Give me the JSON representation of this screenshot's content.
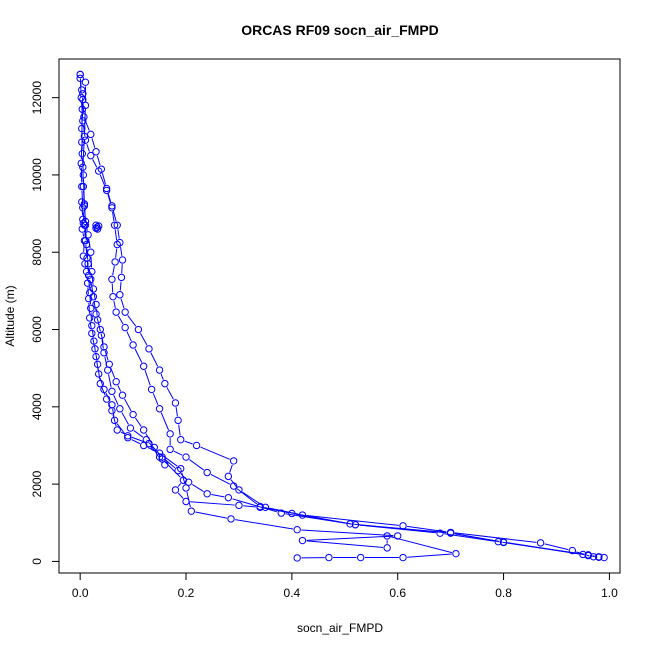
{
  "chart_data": {
    "type": "line",
    "title": "ORCAS RF09 socn_air_FMPD",
    "xlabel": "socn_air_FMPD",
    "ylabel": "Altitude (m)",
    "xlim": [
      -0.04,
      1.02
    ],
    "ylim": [
      -300,
      13000
    ],
    "xticks": [
      0.0,
      0.2,
      0.4,
      0.6,
      0.8,
      1.0
    ],
    "xtick_labels": [
      "0.0",
      "0.2",
      "0.4",
      "0.6",
      "0.8",
      "1.0"
    ],
    "yticks": [
      0,
      2000,
      4000,
      6000,
      8000,
      10000,
      12000
    ],
    "ytick_labels": [
      "0",
      "2000",
      "4000",
      "6000",
      "8000",
      "10000",
      "12000"
    ],
    "grid": false,
    "color": "#0000ff",
    "series": [
      {
        "points": [
          [
            0.0,
            12600
          ],
          [
            0.0,
            12500
          ],
          [
            0.003,
            12200
          ],
          [
            0.005,
            11950
          ],
          [
            0.007,
            11500
          ],
          [
            0.02,
            11050
          ],
          [
            0.03,
            10600
          ],
          [
            0.04,
            10150
          ],
          [
            0.05,
            9650
          ],
          [
            0.06,
            9200
          ],
          [
            0.07,
            8700
          ],
          [
            0.075,
            8250
          ],
          [
            0.08,
            7800
          ],
          [
            0.078,
            7350
          ],
          [
            0.075,
            6900
          ],
          [
            0.085,
            6450
          ],
          [
            0.11,
            6000
          ],
          [
            0.13,
            5500
          ],
          [
            0.15,
            4950
          ],
          [
            0.16,
            4600
          ],
          [
            0.18,
            4100
          ],
          [
            0.185,
            3650
          ],
          [
            0.19,
            3150
          ],
          [
            0.22,
            3000
          ],
          [
            0.29,
            2600
          ],
          [
            0.28,
            2200
          ],
          [
            0.3,
            1850
          ],
          [
            0.35,
            1400
          ],
          [
            0.42,
            1200
          ],
          [
            0.61,
            920
          ],
          [
            0.7,
            750
          ],
          [
            0.87,
            480
          ],
          [
            0.93,
            280
          ],
          [
            0.96,
            150
          ],
          [
            0.98,
            110
          ],
          [
            0.99,
            100
          ]
        ]
      },
      {
        "points": [
          [
            0.0,
            12600
          ],
          [
            0.002,
            12000
          ],
          [
            0.005,
            11400
          ],
          [
            0.01,
            10900
          ],
          [
            0.02,
            10500
          ],
          [
            0.035,
            10100
          ],
          [
            0.05,
            9600
          ],
          [
            0.06,
            9150
          ],
          [
            0.065,
            8700
          ],
          [
            0.07,
            8200
          ],
          [
            0.066,
            7750
          ],
          [
            0.06,
            7300
          ],
          [
            0.062,
            6850
          ],
          [
            0.068,
            6450
          ],
          [
            0.085,
            6050
          ],
          [
            0.1,
            5600
          ],
          [
            0.12,
            5050
          ],
          [
            0.135,
            4450
          ],
          [
            0.15,
            3950
          ],
          [
            0.17,
            3300
          ],
          [
            0.17,
            2900
          ],
          [
            0.2,
            2700
          ],
          [
            0.24,
            2300
          ],
          [
            0.29,
            1950
          ],
          [
            0.34,
            1420
          ],
          [
            0.4,
            1240
          ],
          [
            0.51,
            970
          ],
          [
            0.7,
            730
          ],
          [
            0.8,
            500
          ],
          [
            0.96,
            160
          ],
          [
            0.98,
            120
          ]
        ]
      },
      {
        "points": [
          [
            0.01,
            12400
          ],
          [
            0.01,
            11800
          ],
          [
            0.008,
            11000
          ],
          [
            0.005,
            10200
          ],
          [
            0.006,
            9700
          ],
          [
            0.008,
            9200
          ],
          [
            0.01,
            8700
          ],
          [
            0.012,
            8200
          ],
          [
            0.015,
            7700
          ],
          [
            0.02,
            7300
          ],
          [
            0.025,
            6850
          ],
          [
            0.03,
            6400
          ],
          [
            0.038,
            6000
          ],
          [
            0.045,
            5550
          ],
          [
            0.055,
            5100
          ],
          [
            0.068,
            4650
          ],
          [
            0.08,
            4300
          ],
          [
            0.1,
            3800
          ],
          [
            0.12,
            3400
          ],
          [
            0.14,
            2950
          ],
          [
            0.155,
            2650
          ],
          [
            0.195,
            2100
          ],
          [
            0.18,
            1850
          ],
          [
            0.2,
            1550
          ],
          [
            0.3,
            1450
          ],
          [
            0.34,
            1400
          ],
          [
            0.52,
            950
          ],
          [
            0.7,
            740
          ],
          [
            0.8,
            490
          ],
          [
            0.95,
            180
          ],
          [
            0.97,
            120
          ]
        ]
      },
      {
        "points": [
          [
            0.005,
            12100
          ],
          [
            0.003,
            11200
          ],
          [
            0.004,
            10550
          ],
          [
            0.006,
            10000
          ],
          [
            0.008,
            9250
          ],
          [
            0.01,
            8800
          ],
          [
            0.015,
            8450
          ],
          [
            0.02,
            8000
          ],
          [
            0.022,
            7500
          ],
          [
            0.025,
            7050
          ],
          [
            0.03,
            6650
          ],
          [
            0.033,
            6250
          ],
          [
            0.04,
            5850
          ],
          [
            0.045,
            5400
          ],
          [
            0.052,
            4950
          ],
          [
            0.06,
            4400
          ],
          [
            0.075,
            3950
          ],
          [
            0.095,
            3450
          ],
          [
            0.125,
            3150
          ],
          [
            0.155,
            2700
          ],
          [
            0.185,
            2350
          ],
          [
            0.205,
            2050
          ],
          [
            0.24,
            1750
          ],
          [
            0.28,
            1650
          ],
          [
            0.38,
            1250
          ],
          [
            0.52,
            950
          ],
          [
            0.68,
            730
          ],
          [
            0.79,
            510
          ],
          [
            0.96,
            170
          ],
          [
            0.98,
            110
          ]
        ]
      },
      {
        "points": [
          [
            0.004,
            11700
          ],
          [
            0.003,
            10850
          ],
          [
            0.002,
            10300
          ],
          [
            0.003,
            9700
          ],
          [
            0.005,
            9150
          ],
          [
            0.008,
            8700
          ],
          [
            0.01,
            8300
          ],
          [
            0.013,
            7850
          ],
          [
            0.016,
            7400
          ],
          [
            0.018,
            6950
          ],
          [
            0.02,
            6550
          ],
          [
            0.022,
            6100
          ],
          [
            0.026,
            5700
          ],
          [
            0.03,
            5300
          ],
          [
            0.035,
            4850
          ],
          [
            0.045,
            4450
          ],
          [
            0.06,
            4050
          ],
          [
            0.065,
            3650
          ],
          [
            0.09,
            3200
          ],
          [
            0.12,
            3000
          ],
          [
            0.15,
            2800
          ],
          [
            0.19,
            2400
          ],
          [
            0.2,
            1900
          ],
          [
            0.21,
            1300
          ],
          [
            0.285,
            1100
          ],
          [
            0.41,
            820
          ],
          [
            0.6,
            660
          ],
          [
            0.42,
            540
          ],
          [
            0.58,
            350
          ],
          [
            0.58,
            660
          ],
          [
            0.71,
            200
          ],
          [
            0.61,
            100
          ],
          [
            0.53,
            100
          ],
          [
            0.47,
            100
          ],
          [
            0.41,
            90
          ]
        ]
      },
      {
        "points": [
          [
            0.003,
            9300
          ],
          [
            0.005,
            8850
          ],
          [
            0.006,
            8750
          ],
          [
            0.004,
            8600
          ],
          [
            0.008,
            8300
          ],
          [
            0.006,
            7900
          ],
          [
            0.009,
            7700
          ],
          [
            0.012,
            7500
          ],
          [
            0.014,
            7200
          ],
          [
            0.016,
            6800
          ],
          [
            0.018,
            6300
          ],
          [
            0.022,
            5900
          ],
          [
            0.028,
            5500
          ],
          [
            0.033,
            5100
          ],
          [
            0.038,
            4600
          ],
          [
            0.05,
            4200
          ],
          [
            0.06,
            3900
          ],
          [
            0.07,
            3400
          ],
          [
            0.09,
            3250
          ],
          [
            0.13,
            3050
          ],
          [
            0.15,
            2700
          ],
          [
            0.16,
            2500
          ]
        ]
      },
      {
        "points": [
          [
            0.03,
            8700
          ],
          [
            0.035,
            8680
          ],
          [
            0.032,
            8650
          ],
          [
            0.03,
            8620
          ],
          [
            0.033,
            8600
          ]
        ]
      }
    ]
  }
}
